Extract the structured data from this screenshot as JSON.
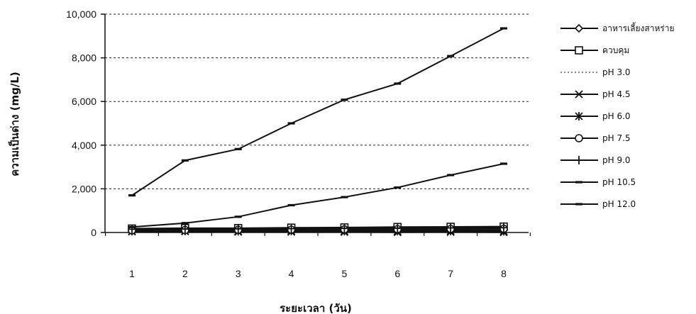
{
  "chart_data": {
    "type": "line",
    "title": "",
    "xlabel": "ระยะเวลา (วัน)",
    "ylabel": "ความเป็นด่าง (mg/L)",
    "ylim": [
      0,
      10000
    ],
    "yticks": [
      0,
      2000,
      4000,
      6000,
      8000,
      10000
    ],
    "ytick_labels": [
      "0",
      "2,000",
      "4,000",
      "6,000",
      "8,000",
      "10,000"
    ],
    "grid": "horizontal dashed",
    "legend_position": "right",
    "x": [
      1,
      2,
      3,
      4,
      5,
      6,
      7,
      8
    ],
    "series": [
      {
        "name": "อาหารเลี้ยงสาหร่าย",
        "marker": "diamond",
        "values": [
          150,
          120,
          100,
          110,
          100,
          110,
          100,
          110
        ]
      },
      {
        "name": "ควบคุม",
        "marker": "square",
        "values": [
          180,
          200,
          200,
          220,
          230,
          250,
          260,
          270
        ]
      },
      {
        "name": "pH 3.0",
        "marker": "dotted",
        "values": [
          50,
          60,
          60,
          70,
          70,
          80,
          80,
          90
        ]
      },
      {
        "name": "pH 4.5",
        "marker": "x",
        "values": [
          40,
          50,
          30,
          30,
          20,
          10,
          20,
          10
        ]
      },
      {
        "name": "pH 6.0",
        "marker": "star",
        "values": [
          60,
          70,
          60,
          70,
          60,
          60,
          70,
          60
        ]
      },
      {
        "name": "pH 7.5",
        "marker": "circle",
        "values": [
          100,
          110,
          120,
          130,
          140,
          150,
          160,
          170
        ]
      },
      {
        "name": "pH 9.0",
        "marker": "plus",
        "values": [
          150,
          160,
          170,
          180,
          190,
          200,
          210,
          220
        ]
      },
      {
        "name": "pH 10.5",
        "marker": "dash",
        "values": [
          250,
          430,
          720,
          1250,
          1620,
          2060,
          2630,
          3150
        ]
      },
      {
        "name": "pH 12.0",
        "marker": "dash",
        "values": [
          1700,
          3300,
          3820,
          5000,
          6080,
          6820,
          8080,
          9350
        ]
      }
    ]
  }
}
